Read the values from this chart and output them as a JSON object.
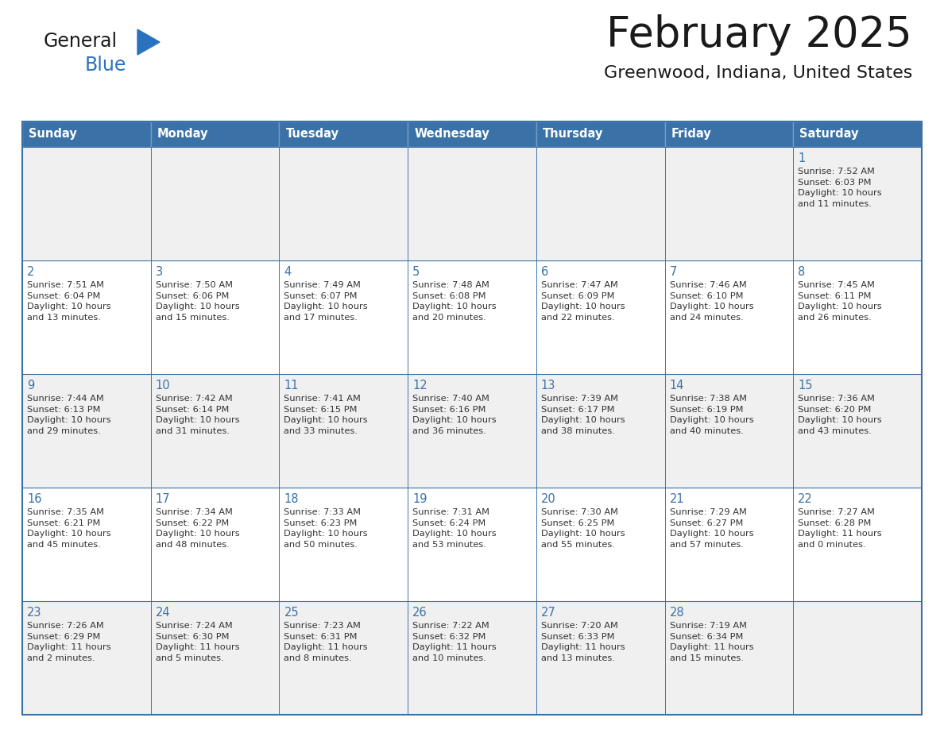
{
  "title": "February 2025",
  "subtitle": "Greenwood, Indiana, United States",
  "days_of_week": [
    "Sunday",
    "Monday",
    "Tuesday",
    "Wednesday",
    "Thursday",
    "Friday",
    "Saturday"
  ],
  "header_bg": "#3a72a8",
  "header_text": "#ffffff",
  "cell_bg_white": "#ffffff",
  "cell_bg_gray": "#f0f0f0",
  "border_color": "#3a72a8",
  "day_num_color": "#3a72a8",
  "cell_text_color": "#333333",
  "title_color": "#1a1a1a",
  "subtitle_color": "#1a1a1a",
  "logo_general_color": "#1a1a1a",
  "logo_blue_color": "#2a72bf",
  "logo_triangle_color": "#2a72bf",
  "calendar": [
    [
      null,
      null,
      null,
      null,
      null,
      null,
      {
        "day": 1,
        "sunrise": "7:52 AM",
        "sunset": "6:03 PM",
        "daylight": "10 hours\nand 11 minutes."
      }
    ],
    [
      {
        "day": 2,
        "sunrise": "7:51 AM",
        "sunset": "6:04 PM",
        "daylight": "10 hours\nand 13 minutes."
      },
      {
        "day": 3,
        "sunrise": "7:50 AM",
        "sunset": "6:06 PM",
        "daylight": "10 hours\nand 15 minutes."
      },
      {
        "day": 4,
        "sunrise": "7:49 AM",
        "sunset": "6:07 PM",
        "daylight": "10 hours\nand 17 minutes."
      },
      {
        "day": 5,
        "sunrise": "7:48 AM",
        "sunset": "6:08 PM",
        "daylight": "10 hours\nand 20 minutes."
      },
      {
        "day": 6,
        "sunrise": "7:47 AM",
        "sunset": "6:09 PM",
        "daylight": "10 hours\nand 22 minutes."
      },
      {
        "day": 7,
        "sunrise": "7:46 AM",
        "sunset": "6:10 PM",
        "daylight": "10 hours\nand 24 minutes."
      },
      {
        "day": 8,
        "sunrise": "7:45 AM",
        "sunset": "6:11 PM",
        "daylight": "10 hours\nand 26 minutes."
      }
    ],
    [
      {
        "day": 9,
        "sunrise": "7:44 AM",
        "sunset": "6:13 PM",
        "daylight": "10 hours\nand 29 minutes."
      },
      {
        "day": 10,
        "sunrise": "7:42 AM",
        "sunset": "6:14 PM",
        "daylight": "10 hours\nand 31 minutes."
      },
      {
        "day": 11,
        "sunrise": "7:41 AM",
        "sunset": "6:15 PM",
        "daylight": "10 hours\nand 33 minutes."
      },
      {
        "day": 12,
        "sunrise": "7:40 AM",
        "sunset": "6:16 PM",
        "daylight": "10 hours\nand 36 minutes."
      },
      {
        "day": 13,
        "sunrise": "7:39 AM",
        "sunset": "6:17 PM",
        "daylight": "10 hours\nand 38 minutes."
      },
      {
        "day": 14,
        "sunrise": "7:38 AM",
        "sunset": "6:19 PM",
        "daylight": "10 hours\nand 40 minutes."
      },
      {
        "day": 15,
        "sunrise": "7:36 AM",
        "sunset": "6:20 PM",
        "daylight": "10 hours\nand 43 minutes."
      }
    ],
    [
      {
        "day": 16,
        "sunrise": "7:35 AM",
        "sunset": "6:21 PM",
        "daylight": "10 hours\nand 45 minutes."
      },
      {
        "day": 17,
        "sunrise": "7:34 AM",
        "sunset": "6:22 PM",
        "daylight": "10 hours\nand 48 minutes."
      },
      {
        "day": 18,
        "sunrise": "7:33 AM",
        "sunset": "6:23 PM",
        "daylight": "10 hours\nand 50 minutes."
      },
      {
        "day": 19,
        "sunrise": "7:31 AM",
        "sunset": "6:24 PM",
        "daylight": "10 hours\nand 53 minutes."
      },
      {
        "day": 20,
        "sunrise": "7:30 AM",
        "sunset": "6:25 PM",
        "daylight": "10 hours\nand 55 minutes."
      },
      {
        "day": 21,
        "sunrise": "7:29 AM",
        "sunset": "6:27 PM",
        "daylight": "10 hours\nand 57 minutes."
      },
      {
        "day": 22,
        "sunrise": "7:27 AM",
        "sunset": "6:28 PM",
        "daylight": "11 hours\nand 0 minutes."
      }
    ],
    [
      {
        "day": 23,
        "sunrise": "7:26 AM",
        "sunset": "6:29 PM",
        "daylight": "11 hours\nand 2 minutes."
      },
      {
        "day": 24,
        "sunrise": "7:24 AM",
        "sunset": "6:30 PM",
        "daylight": "11 hours\nand 5 minutes."
      },
      {
        "day": 25,
        "sunrise": "7:23 AM",
        "sunset": "6:31 PM",
        "daylight": "11 hours\nand 8 minutes."
      },
      {
        "day": 26,
        "sunrise": "7:22 AM",
        "sunset": "6:32 PM",
        "daylight": "11 hours\nand 10 minutes."
      },
      {
        "day": 27,
        "sunrise": "7:20 AM",
        "sunset": "6:33 PM",
        "daylight": "11 hours\nand 13 minutes."
      },
      {
        "day": 28,
        "sunrise": "7:19 AM",
        "sunset": "6:34 PM",
        "daylight": "11 hours\nand 15 minutes."
      },
      null
    ]
  ]
}
